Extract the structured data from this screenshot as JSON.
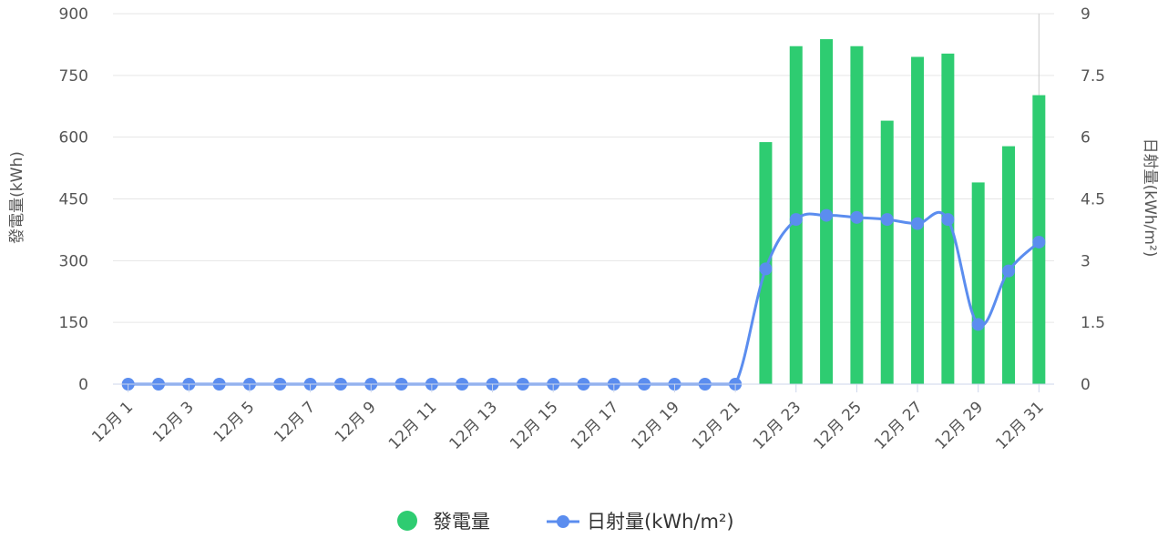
{
  "chart_data": {
    "type": "bar",
    "categories": [
      "12月 1",
      "12月 2",
      "12月 3",
      "12月 4",
      "12月 5",
      "12月 6",
      "12月 7",
      "12月 8",
      "12月 9",
      "12月 10",
      "12月 11",
      "12月 12",
      "12月 13",
      "12月 14",
      "12月 15",
      "12月 16",
      "12月 17",
      "12月 18",
      "12月 19",
      "12月 20",
      "12月 21",
      "12月 22",
      "12月 23",
      "12月 24",
      "12月 25",
      "12月 26",
      "12月 27",
      "12月 28",
      "12月 29",
      "12月 30",
      "12月 31"
    ],
    "x_tick_labels": [
      "12月 1",
      "12月 3",
      "12月 5",
      "12月 7",
      "12月 9",
      "12月 11",
      "12月 13",
      "12月 15",
      "12月 17",
      "12月 19",
      "12月 21",
      "12月 23",
      "12月 25",
      "12月 27",
      "12月 29",
      "12月 31"
    ],
    "series": [
      {
        "name": "發電量",
        "type": "bar",
        "axis": "left",
        "color": "#2ecc71",
        "values": [
          0,
          0,
          0,
          0,
          0,
          0,
          0,
          0,
          0,
          0,
          0,
          0,
          0,
          0,
          0,
          0,
          0,
          0,
          0,
          0,
          0,
          588,
          821,
          838,
          821,
          640,
          795,
          803,
          490,
          578,
          702
        ]
      },
      {
        "name": "日射量(kWh/m²)",
        "type": "line",
        "axis": "right",
        "color": "#5b8def",
        "values": [
          0,
          0,
          0,
          0,
          0,
          0,
          0,
          0,
          0,
          0,
          0,
          0,
          0,
          0,
          0,
          0,
          0,
          0,
          0,
          0,
          0,
          2.8,
          4.0,
          4.1,
          4.05,
          4.0,
          3.9,
          4.0,
          1.45,
          2.75,
          3.45
        ]
      }
    ],
    "y_left": {
      "label": "發電量(kWh)",
      "ylim": [
        0,
        900
      ],
      "ticks": [
        "0",
        "150",
        "300",
        "450",
        "600",
        "750",
        "900"
      ]
    },
    "y_right": {
      "label": "日射量(kWh/m²)",
      "ylim": [
        0,
        9
      ],
      "ticks": [
        "0",
        "1.5",
        "3",
        "4.5",
        "6",
        "7.5",
        "9"
      ]
    },
    "grid": true,
    "legend_position": "bottom-center"
  }
}
